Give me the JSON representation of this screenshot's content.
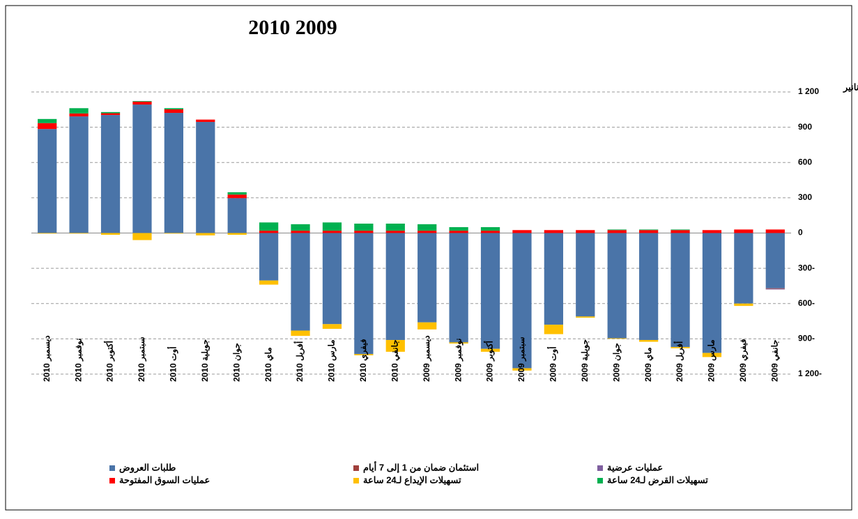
{
  "chart_data": {
    "type": "bar",
    "stacked": true,
    "title": "2010   2009",
    "y_axis_label": "بملايين الدنانير",
    "categories": [
      "ديسمبر 2010",
      "نوفمبر 2010",
      "أكتوبر 2010",
      "سبتمبر 2010",
      "أوت 2010",
      "جويلية 2010",
      "جوان 2010",
      "ماي 2010",
      "أفريل 2010",
      "مارس 2010",
      "فيفري 2010",
      "جانفي 2010",
      "ديسمبر 2009",
      "نوفمبر 2009",
      "أكتوبر 2009",
      "سبتمبر 2009",
      "أوت 2009",
      "جويلية 2009",
      "جوان 2009",
      "ماي 2009",
      "أفريل 2009",
      "مارس 2009",
      "فيفري 2009",
      "جانفي 2009"
    ],
    "series": [
      {
        "name": "طلبات العروض",
        "color": "#4a74a8",
        "values": [
          885,
          992,
          1004,
          1093,
          1022,
          945,
          297,
          -404,
          -830,
          -775,
          -1030,
          -910,
          -760,
          -930,
          -985,
          -1150,
          -780,
          -710,
          -895,
          -910,
          -970,
          -1020,
          -600,
          -470
        ]
      },
      {
        "name": "استئمان ضمان من 1 إلى 7 أيام",
        "color": "#a0403c",
        "values": [
          0,
          0,
          0,
          0,
          0,
          0,
          0,
          0,
          0,
          0,
          0,
          0,
          0,
          0,
          0,
          0,
          0,
          0,
          0,
          0,
          0,
          0,
          0,
          -5
        ]
      },
      {
        "name": "عمليات عرضية",
        "color": "#7f5f9f",
        "values": [
          0,
          0,
          0,
          0,
          0,
          0,
          0,
          0,
          0,
          0,
          0,
          0,
          0,
          0,
          0,
          0,
          0,
          0,
          0,
          0,
          0,
          0,
          0,
          -5
        ]
      },
      {
        "name": "عمليات السوق المفتوحة",
        "color": "#ff0000",
        "values": [
          50,
          25,
          15,
          25,
          30,
          20,
          30,
          20,
          20,
          20,
          20,
          20,
          20,
          20,
          20,
          25,
          25,
          25,
          25,
          25,
          25,
          25,
          30,
          30
        ]
      },
      {
        "name": "تسهيلات الإيداع لـ24 ساعة",
        "color": "#ffc000",
        "values": [
          -5,
          -5,
          -15,
          -60,
          -5,
          -20,
          -15,
          -35,
          -45,
          -40,
          -10,
          -100,
          -60,
          -10,
          -25,
          -20,
          -80,
          -10,
          -5,
          -15,
          -10,
          -35,
          -20,
          0
        ]
      },
      {
        "name": "تسهيلات القرض لـ24 ساعة",
        "color": "#00b050",
        "values": [
          35,
          45,
          10,
          5,
          10,
          0,
          20,
          70,
          55,
          70,
          60,
          60,
          55,
          30,
          30,
          0,
          0,
          0,
          5,
          5,
          5,
          0,
          0,
          0
        ]
      }
    ],
    "ylim": [
      -1200,
      1200
    ],
    "yticks": [
      {
        "value": 1200,
        "label": "1 200"
      },
      900,
      600,
      300,
      0,
      {
        "value": -300,
        "label": "300-"
      },
      {
        "value": -600,
        "label": "600-"
      },
      {
        "value": -900,
        "label": "900-"
      },
      {
        "value": -1200,
        "label": "1 200-"
      }
    ],
    "grid": true
  }
}
